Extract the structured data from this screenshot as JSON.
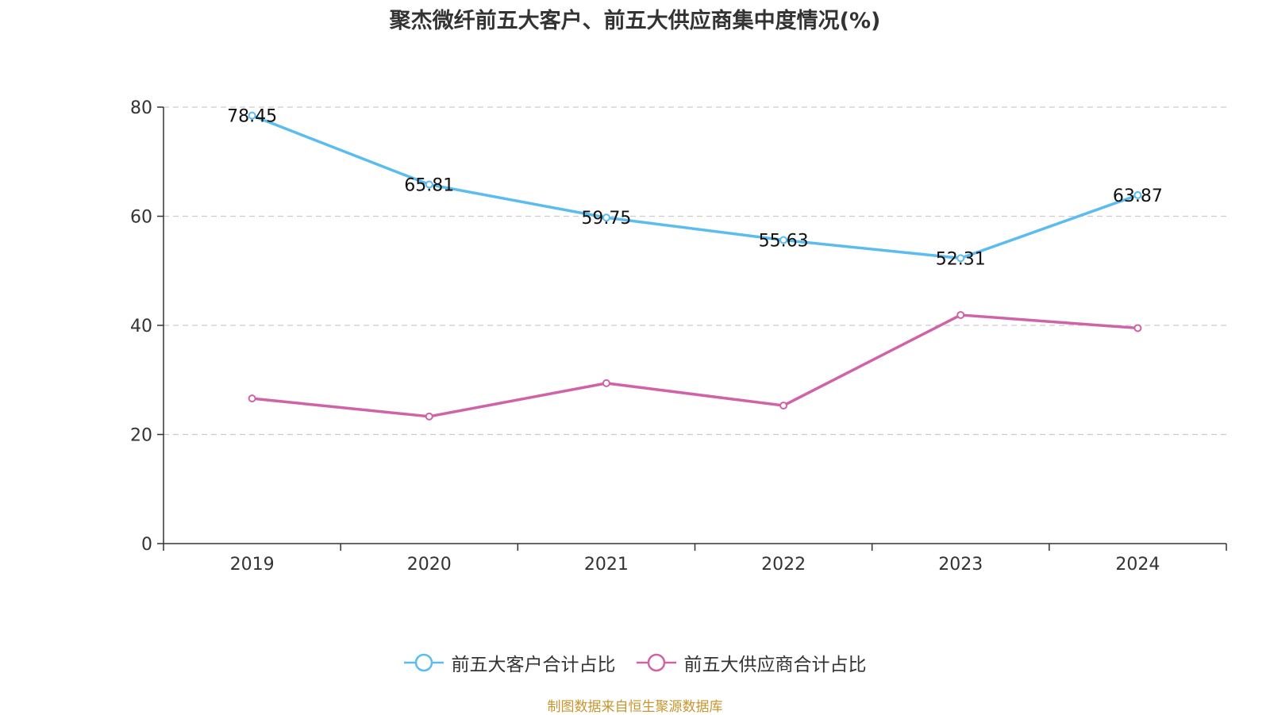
{
  "title": "聚杰微纤前五大客户、前五大供应商集中度情况(%)",
  "source": "制图数据来自恒生聚源数据库",
  "colors": {
    "customers": "#5bbcf0",
    "suppliers": "#d063a8",
    "source": "#c8962e",
    "grid": "#cccccc",
    "axis": "#333333"
  },
  "chart_data": {
    "type": "line",
    "title": "聚杰微纤前五大客户、前五大供应商集中度情况(%)",
    "x": [
      "2019",
      "2020",
      "2021",
      "2022",
      "2023",
      "2024"
    ],
    "ylim": [
      0,
      80
    ],
    "yticks": [
      "0",
      "20",
      "40",
      "60",
      "80"
    ],
    "grid": true,
    "legend_position": "bottom",
    "series": [
      {
        "name": "前五大客户合计占比",
        "values": [
          78.45,
          65.81,
          59.75,
          55.63,
          52.31,
          63.87
        ],
        "labels": [
          "78.45",
          "65.81",
          "59.75",
          "55.63",
          "52.31",
          "63.87"
        ],
        "color_key": "customers"
      },
      {
        "name": "前五大供应商合计占比",
        "values": [
          26.6,
          23.3,
          29.4,
          25.3,
          41.9,
          39.5
        ],
        "labels": [],
        "color_key": "suppliers"
      }
    ]
  }
}
